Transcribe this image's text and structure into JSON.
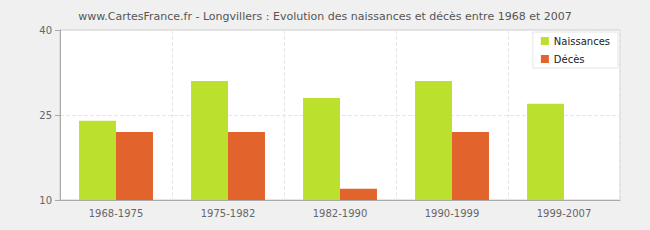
{
  "chart_data": {
    "type": "bar",
    "title": "www.CartesFrance.fr - Longvillers : Evolution des naissances et décès entre 1968 et 2007",
    "categories": [
      "1968-1975",
      "1975-1982",
      "1982-1990",
      "1990-1999",
      "1999-2007"
    ],
    "series": [
      {
        "name": "Naissances",
        "color": "#bbe12e",
        "values": [
          24,
          31,
          28,
          31,
          27
        ]
      },
      {
        "name": "Décès",
        "color": "#e2632b",
        "values": [
          22,
          22,
          12,
          22,
          10
        ]
      }
    ],
    "ylim": [
      10,
      40
    ],
    "yticks": [
      10,
      25,
      40
    ],
    "grid": true,
    "legend": "top-right"
  }
}
